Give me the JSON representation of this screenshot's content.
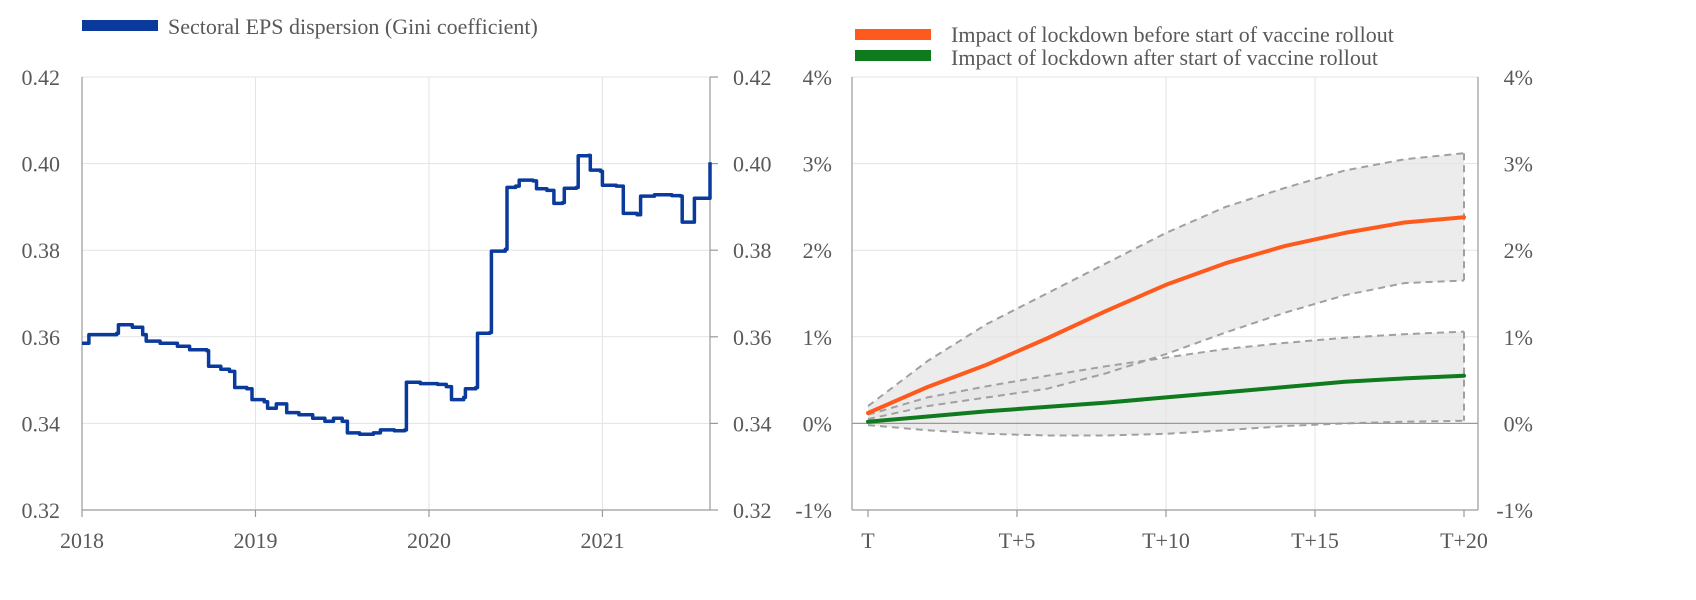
{
  "chart_data": [
    {
      "type": "line",
      "title": "",
      "xlabel": "",
      "ylabel": "",
      "xlim": [
        2018,
        2021.62
      ],
      "ylim": [
        0.32,
        0.42
      ],
      "grid": true,
      "legend_position": "top-left",
      "x_ticks": [
        "2018",
        "2019",
        "2020",
        "2021"
      ],
      "y_ticks_left": [
        "0.32",
        "0.34",
        "0.36",
        "0.38",
        "0.40",
        "0.42"
      ],
      "y_ticks_right": [
        "0.32",
        "0.34",
        "0.36",
        "0.38",
        "0.40",
        "0.42"
      ],
      "series": [
        {
          "name": "Sectoral EPS dispersion (Gini coefficient)",
          "color": "#0a3a9c",
          "points": [
            [
              2018.0,
              0.3585
            ],
            [
              2018.04,
              0.3605
            ],
            [
              2018.2,
              0.3608
            ],
            [
              2018.21,
              0.3628
            ],
            [
              2018.29,
              0.3622
            ],
            [
              2018.35,
              0.3605
            ],
            [
              2018.37,
              0.359
            ],
            [
              2018.45,
              0.3585
            ],
            [
              2018.55,
              0.3578
            ],
            [
              2018.62,
              0.357
            ],
            [
              2018.72,
              0.3568
            ],
            [
              2018.73,
              0.3532
            ],
            [
              2018.8,
              0.3525
            ],
            [
              2018.85,
              0.352
            ],
            [
              2018.88,
              0.3483
            ],
            [
              2018.95,
              0.348
            ],
            [
              2018.98,
              0.3455
            ],
            [
              2019.05,
              0.345
            ],
            [
              2019.07,
              0.3435
            ],
            [
              2019.12,
              0.3445
            ],
            [
              2019.18,
              0.3425
            ],
            [
              2019.25,
              0.342
            ],
            [
              2019.33,
              0.3412
            ],
            [
              2019.4,
              0.3405
            ],
            [
              2019.45,
              0.3412
            ],
            [
              2019.5,
              0.3405
            ],
            [
              2019.53,
              0.3378
            ],
            [
              2019.6,
              0.3375
            ],
            [
              2019.68,
              0.3378
            ],
            [
              2019.72,
              0.3385
            ],
            [
              2019.8,
              0.3383
            ],
            [
              2019.86,
              0.3385
            ],
            [
              2019.87,
              0.3495
            ],
            [
              2019.95,
              0.3492
            ],
            [
              2020.05,
              0.349
            ],
            [
              2020.1,
              0.3485
            ],
            [
              2020.13,
              0.3455
            ],
            [
              2020.2,
              0.346
            ],
            [
              2020.21,
              0.348
            ],
            [
              2020.27,
              0.3483
            ],
            [
              2020.28,
              0.3608
            ],
            [
              2020.35,
              0.361
            ],
            [
              2020.36,
              0.3798
            ],
            [
              2020.44,
              0.3802
            ],
            [
              2020.45,
              0.3945
            ],
            [
              2020.5,
              0.3948
            ],
            [
              2020.52,
              0.3962
            ],
            [
              2020.6,
              0.396
            ],
            [
              2020.62,
              0.3942
            ],
            [
              2020.68,
              0.3938
            ],
            [
              2020.72,
              0.3908
            ],
            [
              2020.77,
              0.391
            ],
            [
              2020.78,
              0.3943
            ],
            [
              2020.85,
              0.3945
            ],
            [
              2020.86,
              0.4018
            ],
            [
              2020.92,
              0.4019
            ],
            [
              2020.93,
              0.3985
            ],
            [
              2020.99,
              0.3982
            ],
            [
              2021.0,
              0.395
            ],
            [
              2021.08,
              0.3948
            ],
            [
              2021.12,
              0.3885
            ],
            [
              2021.2,
              0.3882
            ],
            [
              2021.22,
              0.3925
            ],
            [
              2021.3,
              0.3928
            ],
            [
              2021.4,
              0.3926
            ],
            [
              2021.45,
              0.3925
            ],
            [
              2021.46,
              0.3865
            ],
            [
              2021.52,
              0.3865
            ],
            [
              2021.53,
              0.392
            ],
            [
              2021.6,
              0.392
            ],
            [
              2021.62,
              0.4003
            ]
          ]
        }
      ]
    },
    {
      "type": "line",
      "title": "",
      "xlabel": "",
      "ylabel": "",
      "xlim": [
        0,
        20
      ],
      "ylim": [
        -1,
        4
      ],
      "grid": true,
      "legend_position": "top",
      "x_ticks": [
        "T",
        "T+5",
        "T+10",
        "T+15",
        "T+20"
      ],
      "y_ticks_left": [
        "-1%",
        "0%",
        "1%",
        "2%",
        "3%",
        "4%"
      ],
      "y_ticks_right": [
        "-1%",
        "0%",
        "1%",
        "2%",
        "3%",
        "4%"
      ],
      "x": [
        0,
        2,
        4,
        6,
        8,
        10,
        12,
        14,
        16,
        18,
        20
      ],
      "series": [
        {
          "name": "Impact of lockdown before start of vaccine rollout",
          "color": "#ff5a1e",
          "values": [
            0.12,
            0.42,
            0.68,
            0.98,
            1.3,
            1.6,
            1.85,
            2.05,
            2.2,
            2.32,
            2.38
          ]
        },
        {
          "name": "Impact of lockdown after start of vaccine rollout",
          "color": "#107a1e",
          "values": [
            0.02,
            0.08,
            0.14,
            0.19,
            0.24,
            0.3,
            0.36,
            0.42,
            0.48,
            0.52,
            0.55
          ]
        }
      ],
      "bands": [
        {
          "color": "#e6e6e6",
          "upper": [
            0.2,
            0.72,
            1.15,
            1.5,
            1.85,
            2.2,
            2.5,
            2.72,
            2.92,
            3.05,
            3.12
          ],
          "lower": [
            0.05,
            0.2,
            0.3,
            0.4,
            0.58,
            0.8,
            1.05,
            1.28,
            1.48,
            1.62,
            1.65
          ]
        },
        {
          "color": "#e6e6e6",
          "upper": [
            0.1,
            0.3,
            0.43,
            0.55,
            0.66,
            0.76,
            0.86,
            0.93,
            0.99,
            1.03,
            1.06
          ],
          "lower": [
            -0.02,
            -0.08,
            -0.12,
            -0.14,
            -0.14,
            -0.12,
            -0.08,
            -0.03,
            0.0,
            0.02,
            0.03
          ]
        }
      ]
    }
  ]
}
